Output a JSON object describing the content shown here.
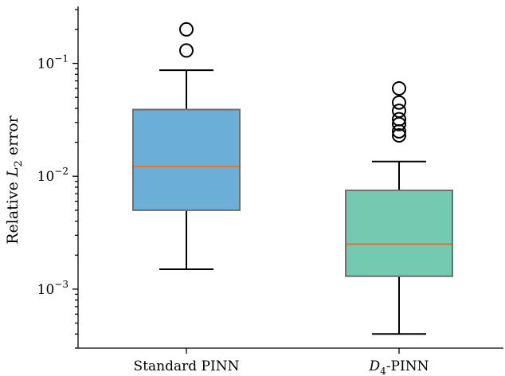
{
  "chart_data": {
    "type": "boxplot",
    "title": "",
    "xlabel": "",
    "ylabel": "Relative L2 error",
    "ylabel_parts": {
      "main": "Relative ",
      "var": "L",
      "sub": "2",
      "rest": " error"
    },
    "yscale": "log",
    "ylim": [
      0.0003,
      0.32
    ],
    "yticks": [
      {
        "value": 0.001,
        "base": "10",
        "exp": "−3"
      },
      {
        "value": 0.01,
        "base": "10",
        "exp": "−2"
      },
      {
        "value": 0.1,
        "base": "10",
        "exp": "−1"
      }
    ],
    "grid": false,
    "categories": [
      "Standard PINN",
      "D4-PINN"
    ],
    "category_labels": [
      {
        "var": "",
        "sub": "",
        "rest": "Standard PINN"
      },
      {
        "var": "D",
        "sub": "4",
        "rest": "-PINN"
      }
    ],
    "series": [
      {
        "category": "Standard PINN",
        "color": "#6baed6",
        "whisker_low": 0.0015,
        "q1": 0.005,
        "median": 0.0122,
        "q3": 0.039,
        "whisker_high": 0.087,
        "outliers": [
          0.13,
          0.2
        ]
      },
      {
        "category": "D4-PINN",
        "color": "#74c9b1",
        "whisker_low": 0.0004,
        "q1": 0.0013,
        "median": 0.0025,
        "q3": 0.0075,
        "whisker_high": 0.0135,
        "outliers": [
          0.023,
          0.025,
          0.029,
          0.032,
          0.038,
          0.045,
          0.06
        ]
      }
    ],
    "median_color": "#e0782a"
  }
}
